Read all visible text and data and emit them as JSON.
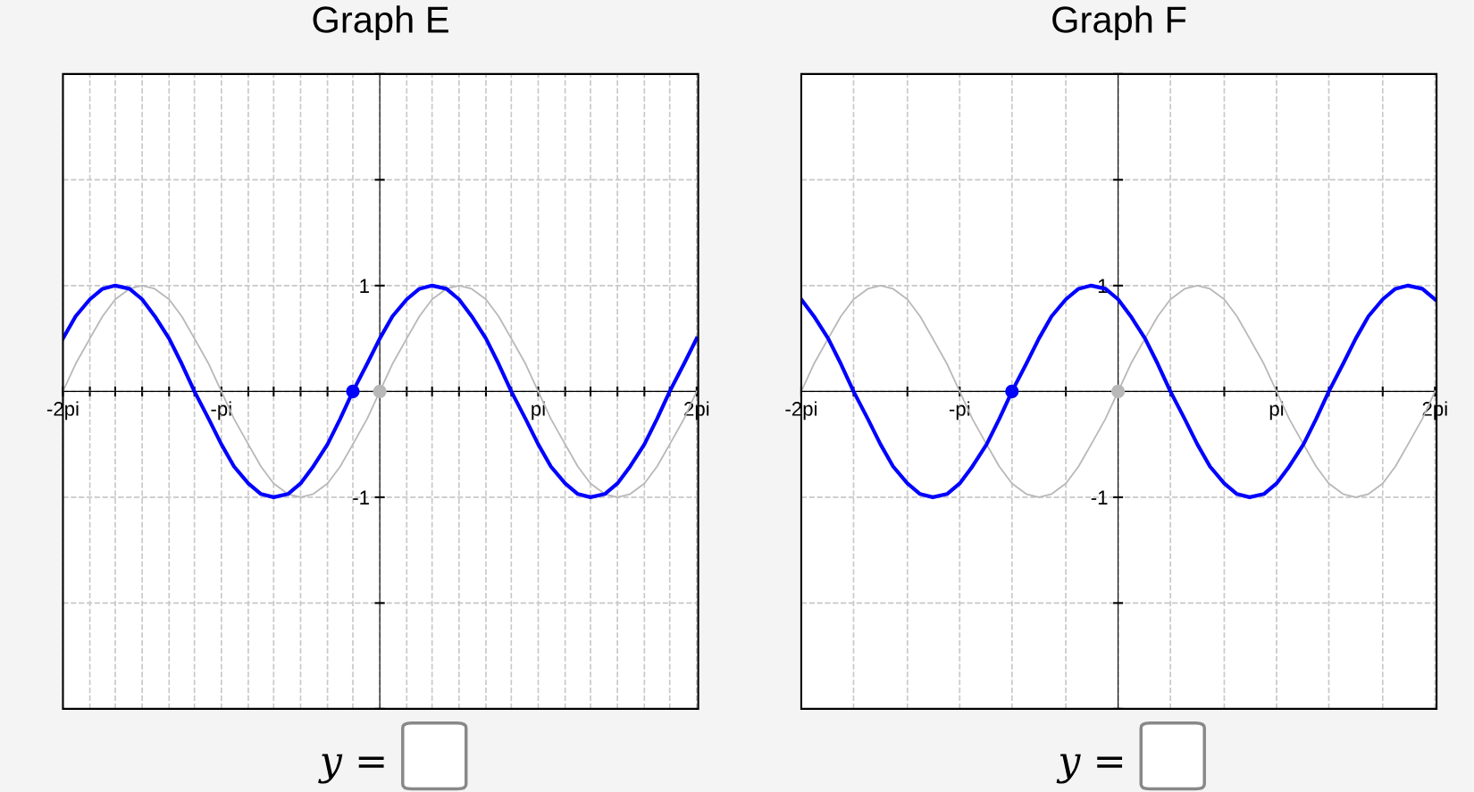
{
  "chart_data": [
    {
      "type": "line",
      "title": "Graph E",
      "annotations": [
        "y ="
      ],
      "xlim": [
        -2,
        2.01
      ],
      "ylim": [
        -3,
        3
      ],
      "grid": true,
      "legend": false,
      "xticks": [
        {
          "value": -2,
          "label": "-2pi"
        },
        {
          "value": -1.83,
          "label": null
        },
        {
          "value": -1.67,
          "label": null
        },
        {
          "value": -1.5,
          "label": null
        },
        {
          "value": -1.33,
          "label": null
        },
        {
          "value": -1.17,
          "label": null
        },
        {
          "value": -1,
          "label": "-pi"
        },
        {
          "value": -0.83,
          "label": null
        },
        {
          "value": -0.67,
          "label": null
        },
        {
          "value": -0.5,
          "label": null
        },
        {
          "value": -0.33,
          "label": null
        },
        {
          "value": -0.17,
          "label": null
        },
        {
          "value": 0,
          "label": null
        },
        {
          "value": 0.17,
          "label": null
        },
        {
          "value": 0.33,
          "label": null
        },
        {
          "value": 0.5,
          "label": null
        },
        {
          "value": 0.67,
          "label": null
        },
        {
          "value": 0.83,
          "label": null
        },
        {
          "value": 1,
          "label": "pi"
        },
        {
          "value": 1.17,
          "label": null
        },
        {
          "value": 1.33,
          "label": null
        },
        {
          "value": 1.5,
          "label": null
        },
        {
          "value": 1.67,
          "label": null
        },
        {
          "value": 1.83,
          "label": null
        },
        {
          "value": 2,
          "label": "2pi"
        }
      ],
      "yticks": [
        {
          "value": -3,
          "label": null
        },
        {
          "value": -2,
          "label": null
        },
        {
          "value": -1,
          "label": "-1"
        },
        {
          "value": 0,
          "label": null
        },
        1,
        {
          "value": 2,
          "label": null
        },
        {
          "value": 3,
          "label": null
        }
      ],
      "x": [
        -2,
        -1.92,
        -1.83,
        -1.75,
        -1.67,
        -1.58,
        -1.5,
        -1.42,
        -1.33,
        -1.25,
        -1.17,
        -1.08,
        -1,
        -0.92,
        -0.83,
        -0.75,
        -0.67,
        -0.58,
        -0.5,
        -0.42,
        -0.33,
        -0.25,
        -0.17,
        -0.08,
        0,
        0.08,
        0.17,
        0.25,
        0.33,
        0.42,
        0.5,
        0.58,
        0.67,
        0.75,
        0.83,
        0.92,
        1,
        1.08,
        1.17,
        1.25,
        1.33,
        1.42,
        1.5,
        1.58,
        1.67,
        1.75,
        1.83,
        1.92,
        2
      ],
      "series": [
        {
          "type": "line",
          "color": "#b8b8b8",
          "line_style": "solid",
          "values": [
            0,
            0.26,
            0.5,
            0.71,
            0.87,
            0.97,
            1,
            0.97,
            0.87,
            0.71,
            0.5,
            0.26,
            0,
            -0.26,
            -0.5,
            -0.71,
            -0.87,
            -0.97,
            -1,
            -0.97,
            -0.87,
            -0.71,
            -0.5,
            -0.26,
            0,
            0.26,
            0.5,
            0.71,
            0.87,
            0.97,
            1,
            0.97,
            0.87,
            0.71,
            0.5,
            0.26,
            0,
            -0.26,
            -0.5,
            -0.71,
            -0.87,
            -0.97,
            -1,
            -0.97,
            -0.87,
            -0.71,
            -0.5,
            -0.26,
            0
          ]
        },
        {
          "type": "line",
          "color": "#0000ff",
          "line_style": "solid",
          "values": [
            0.5,
            0.71,
            0.87,
            0.97,
            1,
            0.97,
            0.87,
            0.71,
            0.5,
            0.26,
            0,
            -0.26,
            -0.5,
            -0.71,
            -0.87,
            -0.97,
            -1,
            -0.97,
            -0.87,
            -0.71,
            -0.5,
            -0.26,
            0,
            0.26,
            0.5,
            0.71,
            0.87,
            0.97,
            1,
            0.97,
            0.87,
            0.71,
            0.5,
            0.26,
            0,
            -0.26,
            -0.5,
            -0.71,
            -0.87,
            -0.97,
            -1,
            -0.97,
            -0.87,
            -0.71,
            -0.5,
            -0.26,
            0,
            0.26,
            0.5
          ]
        },
        {
          "type": "scatter",
          "color": "#b8b8b8",
          "marker": "circle",
          "x": [
            0
          ],
          "values": [
            0
          ]
        },
        {
          "type": "scatter",
          "color": "#0000ff",
          "marker": "circle",
          "x": [
            -0.17
          ],
          "values": [
            0
          ]
        }
      ]
    },
    {
      "type": "line",
      "title": "Graph F",
      "annotations": [
        "y ="
      ],
      "xlim": [
        -2,
        2.01
      ],
      "ylim": [
        -3,
        3
      ],
      "grid": true,
      "legend": false,
      "xticks": [
        {
          "value": -2,
          "label": "-2pi"
        },
        {
          "value": -1.67,
          "label": null
        },
        {
          "value": -1.33,
          "label": null
        },
        {
          "value": -1,
          "label": "-pi"
        },
        {
          "value": -0.67,
          "label": null
        },
        {
          "value": -0.33,
          "label": null
        },
        {
          "value": 0,
          "label": null
        },
        {
          "value": 0.33,
          "label": null
        },
        {
          "value": 0.67,
          "label": null
        },
        {
          "value": 1,
          "label": "pi"
        },
        {
          "value": 1.33,
          "label": null
        },
        {
          "value": 1.67,
          "label": null
        },
        {
          "value": 2,
          "label": "2pi"
        }
      ],
      "yticks": [
        {
          "value": -3,
          "label": null
        },
        {
          "value": -2,
          "label": null
        },
        {
          "value": -1,
          "label": "-1"
        },
        {
          "value": 0,
          "label": null
        },
        1,
        {
          "value": 2,
          "label": null
        },
        {
          "value": 3,
          "label": null
        }
      ],
      "x": [
        -2,
        -1.92,
        -1.83,
        -1.75,
        -1.67,
        -1.58,
        -1.5,
        -1.42,
        -1.33,
        -1.25,
        -1.17,
        -1.08,
        -1,
        -0.92,
        -0.83,
        -0.75,
        -0.67,
        -0.58,
        -0.5,
        -0.42,
        -0.33,
        -0.25,
        -0.17,
        -0.08,
        0,
        0.08,
        0.17,
        0.25,
        0.33,
        0.42,
        0.5,
        0.58,
        0.67,
        0.75,
        0.83,
        0.92,
        1,
        1.08,
        1.17,
        1.25,
        1.33,
        1.42,
        1.5,
        1.58,
        1.67,
        1.75,
        1.83,
        1.92,
        2
      ],
      "series": [
        {
          "type": "line",
          "color": "#b8b8b8",
          "line_style": "solid",
          "values": [
            0,
            0.26,
            0.5,
            0.71,
            0.87,
            0.97,
            1,
            0.97,
            0.87,
            0.71,
            0.5,
            0.26,
            0,
            -0.26,
            -0.5,
            -0.71,
            -0.87,
            -0.97,
            -1,
            -0.97,
            -0.87,
            -0.71,
            -0.5,
            -0.26,
            0,
            0.26,
            0.5,
            0.71,
            0.87,
            0.97,
            1,
            0.97,
            0.87,
            0.71,
            0.5,
            0.26,
            0,
            -0.26,
            -0.5,
            -0.71,
            -0.87,
            -0.97,
            -1,
            -0.97,
            -0.87,
            -0.71,
            -0.5,
            -0.26,
            0
          ]
        },
        {
          "type": "line",
          "color": "#0000ff",
          "line_style": "solid",
          "values": [
            0.87,
            0.71,
            0.5,
            0.26,
            0,
            -0.26,
            -0.5,
            -0.71,
            -0.87,
            -0.97,
            -1,
            -0.97,
            -0.87,
            -0.71,
            -0.5,
            -0.26,
            0,
            0.26,
            0.5,
            0.71,
            0.87,
            0.97,
            1,
            0.97,
            0.87,
            0.71,
            0.5,
            0.26,
            0,
            -0.26,
            -0.5,
            -0.71,
            -0.87,
            -0.97,
            -1,
            -0.97,
            -0.87,
            -0.71,
            -0.5,
            -0.26,
            0,
            0.26,
            0.5,
            0.71,
            0.87,
            0.97,
            1,
            0.97,
            0.87
          ]
        },
        {
          "type": "scatter",
          "color": "#b8b8b8",
          "marker": "circle",
          "x": [
            0
          ],
          "values": [
            0
          ]
        },
        {
          "type": "scatter",
          "color": "#0000ff",
          "marker": "circle",
          "x": [
            -0.67
          ],
          "values": [
            0
          ]
        }
      ]
    }
  ]
}
